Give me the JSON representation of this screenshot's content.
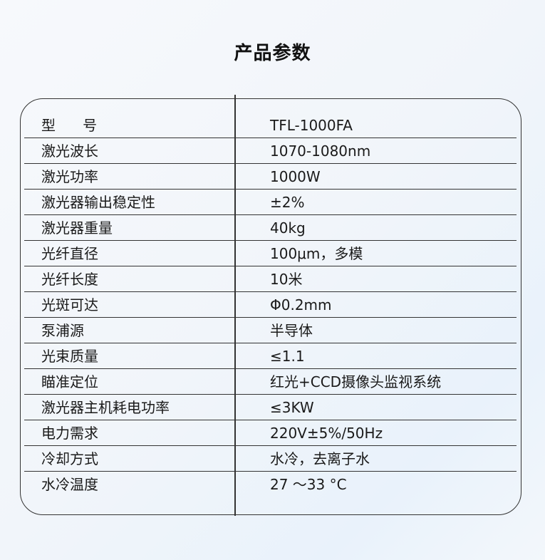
{
  "title": "产品参数",
  "rows": [
    {
      "label": "型      号",
      "value": "TFL-1000FA"
    },
    {
      "label": "激光波长",
      "value": "1070-1080nm"
    },
    {
      "label": "激光功率",
      "value": "1000W"
    },
    {
      "label": "激光器输出稳定性",
      "value": "±2%"
    },
    {
      "label": "激光器重量",
      "value": "40kg"
    },
    {
      "label": "光纤直径",
      "value": "100μm，多模"
    },
    {
      "label": "光纤长度",
      "value": "10米"
    },
    {
      "label": "光斑可达",
      "value": "Φ0.2mm"
    },
    {
      "label": "泵浦源",
      "value": "半导体"
    },
    {
      "label": "光束质量",
      "value": "≤1.1"
    },
    {
      "label": "瞄准定位",
      "value": "红光+CCD摄像头监视系统"
    },
    {
      "label": "激光器主机耗电功率",
      "value": "≤3KW"
    },
    {
      "label": "电力需求",
      "value": "220V±5%/50Hz"
    },
    {
      "label": "冷却方式",
      "value": "水冷，去离子水"
    },
    {
      "label": "水冷温度",
      "value": "27 ～33 °C"
    }
  ]
}
